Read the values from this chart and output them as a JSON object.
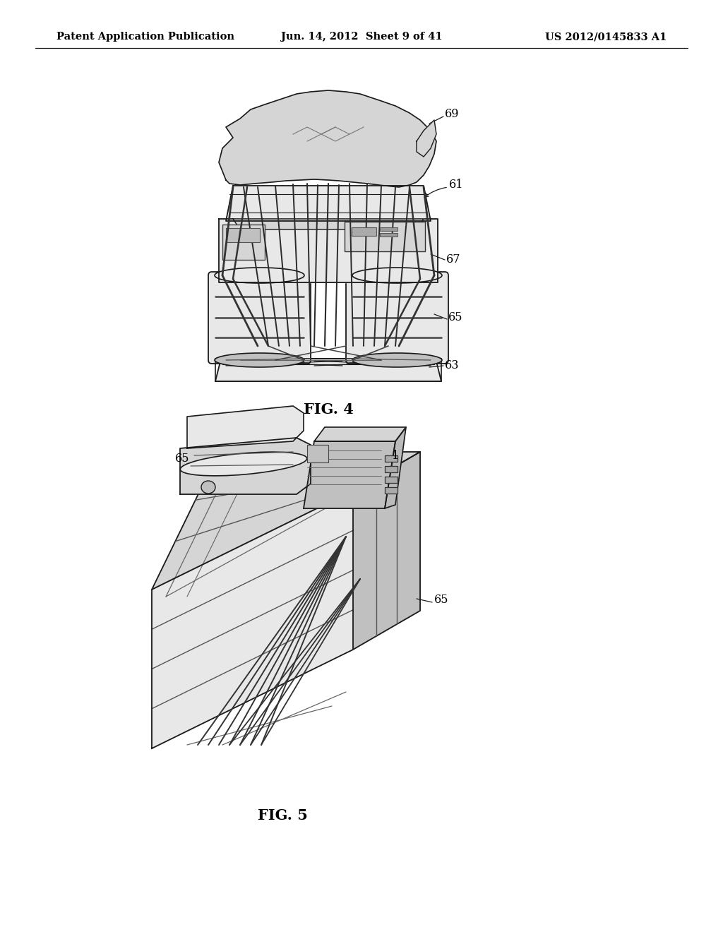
{
  "background_color": "#ffffff",
  "header_left": "Patent Application Publication",
  "header_center": "Jun. 14, 2012  Sheet 9 of 41",
  "header_right": "US 2012/0145833 A1",
  "header_fontsize": 10.5,
  "fig4_label": "FIG. 4",
  "fig5_label": "FIG. 5",
  "fig_label_fontsize": 15,
  "callout_fontsize": 11.5,
  "line_color": "#1a1a1a",
  "fill_light": "#e8e8e8",
  "fill_mid": "#d5d5d5",
  "fill_dark": "#c0c0c0"
}
